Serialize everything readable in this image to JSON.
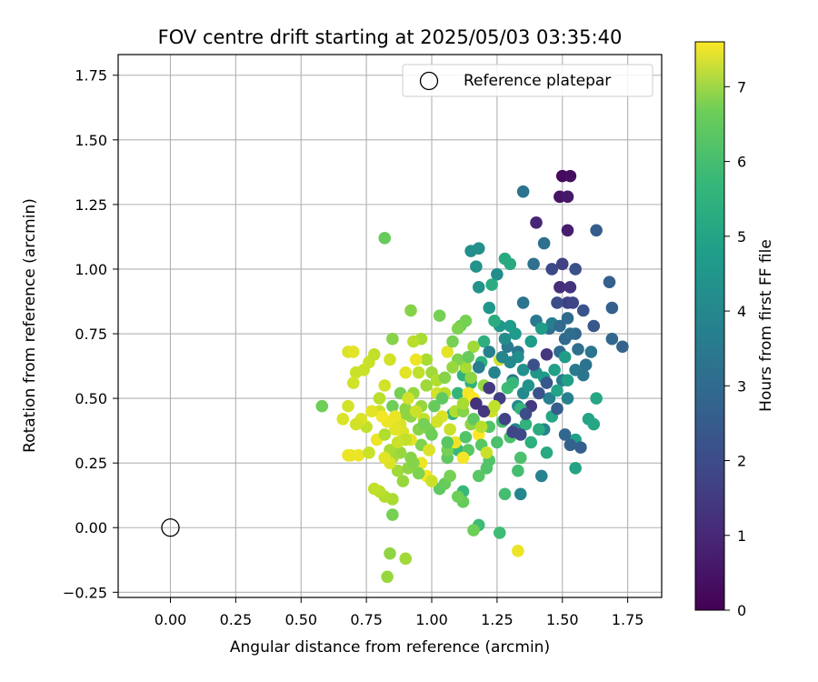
{
  "chart_data": {
    "type": "scatter",
    "title": "FOV centre drift starting at 2025/05/03 03:35:40",
    "xlabel": "Angular distance from reference (arcmin)",
    "ylabel": "Rotation from reference (arcmin)",
    "xlim": [
      -0.2,
      1.88
    ],
    "ylim": [
      -0.27,
      1.83
    ],
    "x_ticks": [
      "0.00",
      "0.25",
      "0.50",
      "0.75",
      "1.00",
      "1.25",
      "1.50",
      "1.75"
    ],
    "y_ticks": [
      "−0.25",
      "0.00",
      "0.25",
      "0.50",
      "0.75",
      "1.00",
      "1.25",
      "1.50",
      "1.75"
    ],
    "grid": true,
    "legend": {
      "position": "top-right",
      "entries": [
        "Reference platepar"
      ]
    },
    "reference_point": {
      "label": "Reference platepar",
      "x": 0.0,
      "y": 0.0,
      "marker": "open-circle"
    },
    "colorbar": {
      "label": "Hours from first FF file",
      "colormap": "viridis",
      "min": 0,
      "max": 7.6,
      "ticks": [
        "0",
        "1",
        "2",
        "3",
        "4",
        "5",
        "6",
        "7"
      ]
    },
    "points": [
      [
        1.5,
        1.36,
        0.2
      ],
      [
        1.53,
        1.36,
        0.3
      ],
      [
        1.49,
        1.28,
        0.4
      ],
      [
        1.52,
        1.28,
        0.5
      ],
      [
        1.52,
        1.15,
        0.6
      ],
      [
        1.4,
        1.18,
        0.8
      ],
      [
        1.49,
        0.93,
        1.0
      ],
      [
        1.53,
        0.93,
        1.1
      ],
      [
        1.44,
        0.67,
        1.2
      ],
      [
        1.38,
        0.47,
        1.3
      ],
      [
        1.52,
        0.87,
        1.4
      ],
      [
        1.5,
        1.02,
        1.5
      ],
      [
        1.54,
        0.87,
        1.6
      ],
      [
        1.46,
        1.0,
        1.7
      ],
      [
        1.48,
        0.87,
        1.8
      ],
      [
        1.55,
        1.0,
        1.9
      ],
      [
        1.58,
        0.84,
        2.0
      ],
      [
        1.62,
        0.78,
        2.1
      ],
      [
        1.63,
        1.15,
        2.2
      ],
      [
        1.68,
        0.95,
        2.3
      ],
      [
        1.69,
        0.85,
        2.3
      ],
      [
        1.73,
        0.7,
        2.4
      ],
      [
        1.69,
        0.73,
        2.5
      ],
      [
        1.55,
        0.75,
        2.5
      ],
      [
        1.52,
        0.81,
        2.6
      ],
      [
        1.51,
        0.73,
        2.6
      ],
      [
        1.49,
        0.68,
        2.7
      ],
      [
        1.45,
        0.77,
        2.7
      ],
      [
        1.43,
        1.1,
        2.8
      ],
      [
        1.39,
        1.02,
        2.8
      ],
      [
        1.35,
        1.3,
        2.9
      ],
      [
        1.35,
        0.87,
        2.9
      ],
      [
        1.33,
        0.68,
        3.0
      ],
      [
        1.31,
        0.57,
        3.0
      ],
      [
        1.29,
        0.7,
        3.1
      ],
      [
        1.4,
        0.8,
        3.1
      ],
      [
        1.46,
        0.79,
        3.2
      ],
      [
        1.5,
        0.57,
        3.2
      ],
      [
        1.52,
        0.5,
        3.3
      ],
      [
        1.45,
        0.5,
        3.3
      ],
      [
        1.43,
        0.38,
        3.4
      ],
      [
        1.42,
        0.2,
        3.4
      ],
      [
        1.34,
        0.13,
        3.5
      ],
      [
        1.32,
        0.38,
        3.5
      ],
      [
        1.33,
        0.47,
        3.6
      ],
      [
        1.35,
        0.52,
        3.6
      ],
      [
        1.28,
        0.73,
        3.7
      ],
      [
        1.25,
        0.98,
        3.7
      ],
      [
        1.18,
        1.08,
        3.8
      ],
      [
        1.15,
        1.07,
        3.8
      ],
      [
        1.17,
        1.01,
        3.9
      ],
      [
        1.18,
        0.93,
        3.9
      ],
      [
        1.22,
        0.85,
        4.0
      ],
      [
        1.26,
        0.78,
        4.0
      ],
      [
        1.3,
        0.78,
        4.1
      ],
      [
        1.32,
        0.75,
        4.1
      ],
      [
        1.38,
        0.72,
        4.2
      ],
      [
        1.42,
        0.77,
        4.2
      ],
      [
        1.52,
        0.57,
        4.3
      ],
      [
        1.55,
        0.34,
        4.3
      ],
      [
        1.55,
        0.23,
        4.4
      ],
      [
        1.6,
        0.42,
        4.4
      ],
      [
        1.62,
        0.4,
        4.5
      ],
      [
        1.63,
        0.5,
        4.5
      ],
      [
        1.28,
        1.04,
        4.6
      ],
      [
        1.3,
        1.02,
        4.6
      ],
      [
        1.23,
        0.94,
        4.7
      ],
      [
        1.24,
        0.8,
        4.7
      ],
      [
        1.2,
        0.72,
        4.8
      ],
      [
        1.19,
        0.64,
        4.8
      ],
      [
        1.15,
        0.56,
        4.9
      ],
      [
        1.12,
        0.59,
        4.9
      ],
      [
        1.1,
        0.52,
        5.0
      ],
      [
        1.08,
        0.44,
        5.0
      ],
      [
        1.1,
        0.3,
        5.1
      ],
      [
        1.12,
        0.14,
        5.1
      ],
      [
        1.18,
        0.01,
        5.2
      ],
      [
        1.26,
        -0.02,
        5.2
      ],
      [
        1.28,
        0.13,
        5.3
      ],
      [
        1.33,
        0.22,
        5.3
      ],
      [
        1.34,
        0.27,
        5.4
      ],
      [
        1.3,
        0.35,
        5.4
      ],
      [
        1.22,
        0.39,
        5.5
      ],
      [
        1.21,
        0.23,
        5.5
      ],
      [
        1.18,
        0.2,
        5.6
      ],
      [
        1.14,
        0.3,
        5.6
      ],
      [
        1.06,
        0.27,
        5.7
      ],
      [
        1.03,
        0.15,
        5.7
      ],
      [
        1.05,
        0.17,
        5.8
      ],
      [
        1.12,
        0.1,
        5.8
      ],
      [
        1.16,
        -0.01,
        5.9
      ],
      [
        1.1,
        0.12,
        5.9
      ],
      [
        1.07,
        0.2,
        6.0
      ],
      [
        1.06,
        0.3,
        6.0
      ],
      [
        0.99,
        0.38,
        6.1
      ],
      [
        0.96,
        0.32,
        6.1
      ],
      [
        0.95,
        0.38,
        6.2
      ],
      [
        0.92,
        0.27,
        6.2
      ],
      [
        0.92,
        0.43,
        6.3
      ],
      [
        0.9,
        0.46,
        6.3
      ],
      [
        0.93,
        0.52,
        6.4
      ],
      [
        0.96,
        0.47,
        6.4
      ],
      [
        0.98,
        0.55,
        6.5
      ],
      [
        1.0,
        0.6,
        6.5
      ],
      [
        0.98,
        0.65,
        6.6
      ],
      [
        0.96,
        0.73,
        6.6
      ],
      [
        0.92,
        0.84,
        6.2
      ],
      [
        0.82,
        1.12,
        5.8
      ],
      [
        0.58,
        0.47,
        5.9
      ],
      [
        0.85,
        0.47,
        5.9
      ],
      [
        0.85,
        0.73,
        6.2
      ],
      [
        0.88,
        0.52,
        6.0
      ],
      [
        0.9,
        0.44,
        6.3
      ],
      [
        0.88,
        0.29,
        6.4
      ],
      [
        0.85,
        0.27,
        6.5
      ],
      [
        0.85,
        0.05,
        6.0
      ],
      [
        0.84,
        -0.1,
        6.3
      ],
      [
        0.83,
        -0.19,
        6.4
      ],
      [
        0.9,
        -0.12,
        6.5
      ],
      [
        0.85,
        0.11,
        6.6
      ],
      [
        0.82,
        0.12,
        6.7
      ],
      [
        0.8,
        0.14,
        6.8
      ],
      [
        0.78,
        0.15,
        6.9
      ],
      [
        0.75,
        0.39,
        6.9
      ],
      [
        0.74,
        0.61,
        7.0
      ],
      [
        0.71,
        0.6,
        7.0
      ],
      [
        0.7,
        0.56,
        7.1
      ],
      [
        0.68,
        0.47,
        7.1
      ],
      [
        0.66,
        0.42,
        7.2
      ],
      [
        0.68,
        0.68,
        7.2
      ],
      [
        0.7,
        0.68,
        7.3
      ],
      [
        0.69,
        0.28,
        7.3
      ],
      [
        0.72,
        0.28,
        7.4
      ],
      [
        0.68,
        0.28,
        7.4
      ],
      [
        0.76,
        0.29,
        7.0
      ],
      [
        0.8,
        0.45,
        7.0
      ],
      [
        0.82,
        0.55,
        7.1
      ],
      [
        0.84,
        0.65,
        7.1
      ],
      [
        0.86,
        0.42,
        7.2
      ],
      [
        0.88,
        0.4,
        7.2
      ],
      [
        0.9,
        0.6,
        7.3
      ],
      [
        0.92,
        0.34,
        7.3
      ],
      [
        0.94,
        0.65,
        7.4
      ],
      [
        0.96,
        0.25,
        7.4
      ],
      [
        0.98,
        0.2,
        7.5
      ],
      [
        1.0,
        0.18,
        7.0
      ],
      [
        1.02,
        0.52,
        7.1
      ],
      [
        1.04,
        0.43,
        7.2
      ],
      [
        1.06,
        0.68,
        7.3
      ],
      [
        1.09,
        0.33,
        7.4
      ],
      [
        1.12,
        0.27,
        7.5
      ],
      [
        1.14,
        0.52,
        7.5
      ],
      [
        1.16,
        0.5,
        7.6
      ],
      [
        1.18,
        0.36,
        7.6
      ],
      [
        1.23,
        0.45,
        7.0
      ],
      [
        1.26,
        0.65,
        7.1
      ],
      [
        1.33,
        -0.09,
        7.4
      ],
      [
        1.05,
        0.52,
        6.8
      ],
      [
        1.09,
        0.45,
        6.7
      ],
      [
        1.13,
        0.62,
        6.6
      ],
      [
        1.16,
        0.7,
        6.5
      ],
      [
        1.2,
        0.55,
        6.4
      ],
      [
        1.15,
        0.4,
        6.3
      ],
      [
        1.12,
        0.45,
        6.2
      ],
      [
        1.1,
        0.65,
        6.1
      ],
      [
        1.08,
        0.72,
        6.0
      ],
      [
        1.11,
        0.78,
        5.9
      ],
      [
        1.14,
        0.66,
        5.8
      ],
      [
        1.16,
        0.42,
        5.7
      ],
      [
        1.19,
        0.32,
        5.6
      ],
      [
        1.22,
        0.26,
        5.5
      ],
      [
        1.25,
        0.33,
        5.4
      ],
      [
        1.27,
        0.41,
        5.3
      ],
      [
        1.29,
        0.54,
        5.2
      ],
      [
        1.31,
        0.56,
        5.1
      ],
      [
        1.34,
        0.46,
        5.0
      ],
      [
        1.36,
        0.4,
        4.9
      ],
      [
        1.38,
        0.33,
        4.8
      ],
      [
        1.41,
        0.38,
        4.7
      ],
      [
        1.44,
        0.29,
        4.6
      ],
      [
        1.46,
        0.43,
        4.5
      ],
      [
        1.48,
        0.53,
        4.4
      ],
      [
        1.47,
        0.61,
        4.3
      ],
      [
        1.51,
        0.66,
        4.2
      ],
      [
        1.43,
        0.58,
        4.1
      ],
      [
        1.4,
        0.6,
        4.0
      ],
      [
        1.37,
        0.55,
        3.9
      ],
      [
        1.35,
        0.61,
        3.8
      ],
      [
        1.33,
        0.66,
        3.7
      ],
      [
        1.3,
        0.64,
        3.6
      ],
      [
        1.27,
        0.66,
        3.5
      ],
      [
        1.24,
        0.6,
        3.4
      ],
      [
        1.22,
        0.68,
        3.3
      ],
      [
        1.18,
        0.62,
        3.2
      ],
      [
        1.55,
        0.61,
        3.1
      ],
      [
        1.58,
        0.59,
        3.0
      ],
      [
        1.61,
        0.68,
        3.0
      ],
      [
        1.59,
        0.63,
        2.9
      ],
      [
        1.56,
        0.69,
        2.8
      ],
      [
        1.53,
        0.75,
        2.7
      ],
      [
        1.49,
        0.78,
        2.6
      ],
      [
        1.51,
        0.36,
        2.5
      ],
      [
        1.53,
        0.32,
        2.4
      ],
      [
        1.57,
        0.31,
        2.3
      ],
      [
        1.48,
        0.46,
        2.2
      ],
      [
        1.44,
        0.56,
        2.1
      ],
      [
        1.41,
        0.52,
        2.0
      ],
      [
        1.39,
        0.63,
        1.9
      ],
      [
        1.36,
        0.44,
        1.8
      ],
      [
        1.34,
        0.36,
        1.7
      ],
      [
        1.31,
        0.37,
        1.6
      ],
      [
        1.28,
        0.42,
        1.5
      ],
      [
        1.26,
        0.5,
        1.4
      ],
      [
        1.22,
        0.54,
        1.3
      ],
      [
        1.2,
        0.45,
        1.2
      ],
      [
        1.17,
        0.48,
        1.1
      ],
      [
        0.95,
        0.6,
        6.9
      ],
      [
        0.93,
        0.72,
        6.8
      ],
      [
        1.03,
        0.82,
        6.0
      ],
      [
        1.08,
        0.62,
        6.4
      ],
      [
        1.02,
        0.57,
        6.7
      ],
      [
        0.97,
        0.42,
        6.9
      ],
      [
        0.94,
        0.45,
        7.0
      ],
      [
        0.91,
        0.5,
        7.1
      ],
      [
        0.89,
        0.37,
        7.2
      ],
      [
        0.86,
        0.38,
        7.3
      ],
      [
        0.83,
        0.41,
        7.4
      ],
      [
        0.81,
        0.43,
        7.5
      ],
      [
        0.79,
        0.34,
        7.4
      ],
      [
        0.77,
        0.45,
        7.3
      ],
      [
        0.73,
        0.42,
        7.2
      ],
      [
        0.71,
        0.4,
        7.1
      ],
      [
        0.76,
        0.64,
        7.0
      ],
      [
        0.78,
        0.67,
        6.9
      ],
      [
        0.8,
        0.5,
        6.8
      ],
      [
        0.82,
        0.36,
        6.7
      ],
      [
        0.84,
        0.3,
        6.6
      ],
      [
        0.87,
        0.22,
        6.5
      ],
      [
        0.89,
        0.18,
        6.4
      ],
      [
        0.91,
        0.23,
        6.3
      ],
      [
        0.93,
        0.25,
        6.2
      ],
      [
        0.95,
        0.21,
        6.1
      ],
      [
        0.97,
        0.4,
        6.0
      ],
      [
        1.0,
        0.36,
        5.9
      ],
      [
        1.01,
        0.47,
        5.8
      ],
      [
        1.04,
        0.5,
        5.7
      ],
      [
        1.06,
        0.33,
        5.6
      ],
      [
        1.13,
        0.35,
        5.5
      ],
      [
        1.13,
        0.8,
        6.0
      ],
      [
        1.1,
        0.77,
        6.1
      ],
      [
        1.05,
        0.58,
        6.2
      ],
      [
        1.15,
        0.58,
        6.3
      ],
      [
        1.12,
        0.48,
        6.6
      ],
      [
        1.19,
        0.39,
        6.8
      ],
      [
        1.21,
        0.29,
        7.0
      ],
      [
        1.24,
        0.47,
        6.9
      ],
      [
        1.07,
        0.38,
        7.0
      ],
      [
        1.02,
        0.41,
        7.1
      ],
      [
        0.99,
        0.3,
        7.2
      ],
      [
        0.9,
        0.34,
        6.9
      ],
      [
        0.87,
        0.33,
        7.0
      ],
      [
        0.84,
        0.25,
        7.2
      ],
      [
        0.82,
        0.27,
        7.3
      ],
      [
        0.86,
        0.43,
        7.4
      ]
    ]
  }
}
